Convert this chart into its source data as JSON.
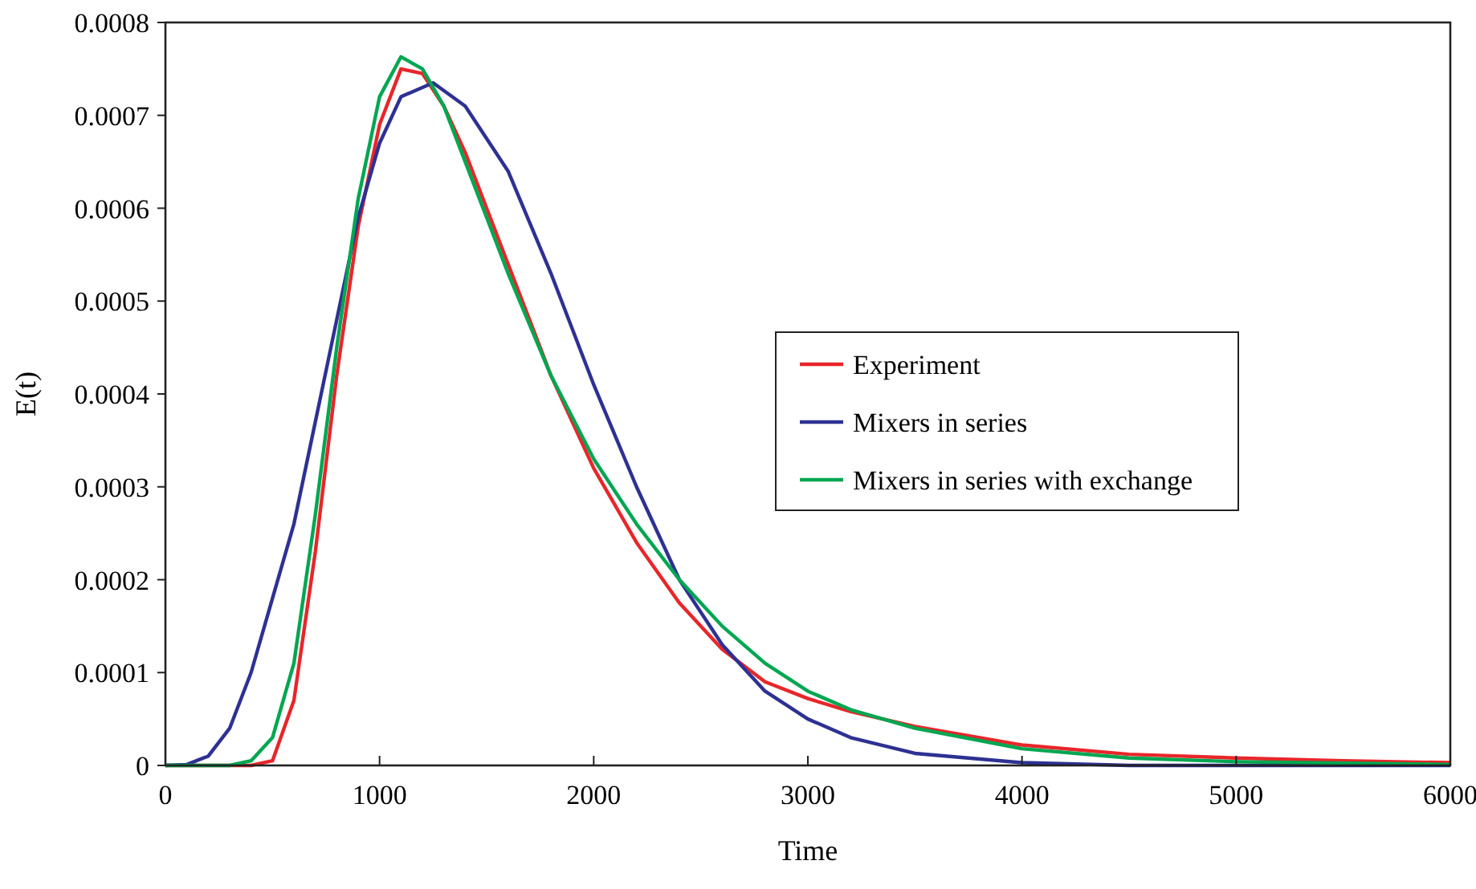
{
  "chart_data": {
    "type": "line",
    "xlabel": "Time",
    "ylabel": "E(t)",
    "xlim": [
      0,
      6000
    ],
    "ylim": [
      0,
      0.0008
    ],
    "xticks": [
      0,
      1000,
      2000,
      3000,
      4000,
      5000,
      6000
    ],
    "yticks": [
      0,
      0.0001,
      0.0002,
      0.0003,
      0.0004,
      0.0005,
      0.0006,
      0.0007,
      0.0008
    ],
    "grid": false,
    "legend": "right",
    "line_style": "solid",
    "series": [
      {
        "name": "Experiment",
        "color": "#e8262a",
        "x": [
          0,
          400,
          500,
          600,
          700,
          800,
          900,
          1000,
          1100,
          1200,
          1300,
          1400,
          1500,
          1600,
          1700,
          1800,
          1900,
          2000,
          2200,
          2400,
          2600,
          2800,
          3000,
          3200,
          3500,
          4000,
          4500,
          5000,
          5500,
          6000
        ],
        "values": [
          0,
          0,
          5e-06,
          7e-05,
          0.00023,
          0.00042,
          0.00058,
          0.00069,
          0.00075,
          0.000745,
          0.00071,
          0.00066,
          0.0006,
          0.00054,
          0.00048,
          0.00042,
          0.00037,
          0.00032,
          0.00024,
          0.000175,
          0.000125,
          9e-05,
          7.2e-05,
          5.8e-05,
          4.2e-05,
          2.2e-05,
          1.2e-05,
          8e-06,
          5e-06,
          3e-06
        ]
      },
      {
        "name": "Mixers in series",
        "color": "#2e3192",
        "x": [
          0,
          100,
          200,
          300,
          400,
          500,
          600,
          700,
          800,
          900,
          1000,
          1100,
          1250,
          1400,
          1600,
          1800,
          2000,
          2200,
          2400,
          2600,
          2800,
          3000,
          3200,
          3500,
          4000,
          4500,
          6000
        ],
        "values": [
          0,
          1e-06,
          1e-05,
          4e-05,
          0.0001,
          0.00018,
          0.00026,
          0.00037,
          0.00048,
          0.00059,
          0.00067,
          0.00072,
          0.000735,
          0.00071,
          0.00064,
          0.00053,
          0.00041,
          0.0003,
          0.0002,
          0.00013,
          8e-05,
          5e-05,
          3e-05,
          1.3e-05,
          3e-06,
          0,
          0
        ]
      },
      {
        "name": "Mixers in series with exchange",
        "color": "#00a651",
        "x": [
          0,
          300,
          400,
          500,
          600,
          700,
          800,
          900,
          1000,
          1100,
          1200,
          1300,
          1400,
          1500,
          1600,
          1800,
          2000,
          2200,
          2400,
          2600,
          2800,
          3000,
          3200,
          3500,
          4000,
          4500,
          5000,
          6000
        ],
        "values": [
          0,
          0,
          5e-06,
          3e-05,
          0.00011,
          0.00027,
          0.00045,
          0.00061,
          0.00072,
          0.000763,
          0.00075,
          0.00071,
          0.00065,
          0.00059,
          0.00053,
          0.00042,
          0.00033,
          0.00026,
          0.0002,
          0.00015,
          0.00011,
          8e-05,
          6e-05,
          4e-05,
          1.8e-05,
          8e-06,
          4e-06,
          1e-06
        ]
      }
    ]
  }
}
